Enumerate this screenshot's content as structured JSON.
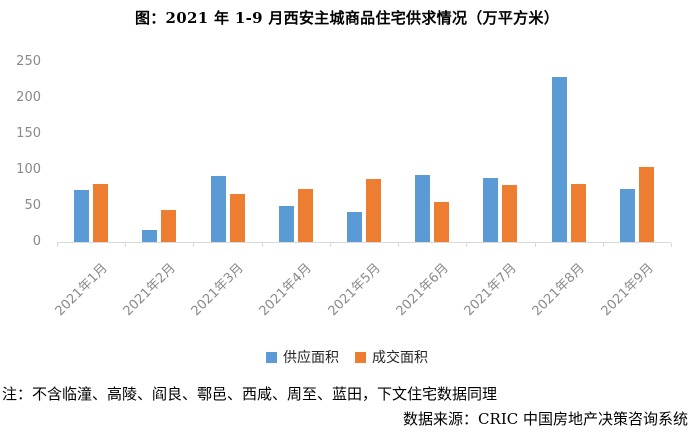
{
  "title": "图：2021 年 1-9 月西安主城商品住宅供求情况（万平方米）",
  "chart_data": {
    "type": "bar",
    "title": "图：2021 年 1-9 月西安主城商品住宅供求情况（万平方米）",
    "categories": [
      "2021年1月",
      "2021年2月",
      "2021年3月",
      "2021年4月",
      "2021年5月",
      "2021年6月",
      "2021年7月",
      "2021年8月",
      "2021年9月"
    ],
    "series": [
      {
        "key": "supply-area",
        "name": "供应面积",
        "color": "#5b9bd5",
        "values": [
          72,
          17,
          92,
          50,
          42,
          93,
          89,
          229,
          73
        ]
      },
      {
        "key": "transaction-area",
        "name": "成交面积",
        "color": "#ed7d31",
        "values": [
          80,
          44,
          66,
          74,
          88,
          56,
          79,
          81,
          104
        ]
      }
    ],
    "xlabel": "",
    "ylabel": "",
    "ylim": [
      0,
      250
    ],
    "yticks": [
      0,
      50,
      100,
      150,
      200,
      250
    ],
    "grid": false,
    "legend_position": "bottom"
  },
  "notes": {
    "note": "注：不含临潼、高陵、阎良、鄠邑、西咸、周至、蓝田，下文住宅数据同理",
    "source": "数据来源：CRIC 中国房地产决策咨询系统"
  },
  "colors": {
    "supply": "#5b9bd5",
    "transaction": "#ed7d31",
    "axis_line": "#d9d9d9",
    "tick_label": "#8a8a8a",
    "text": "#000000"
  }
}
